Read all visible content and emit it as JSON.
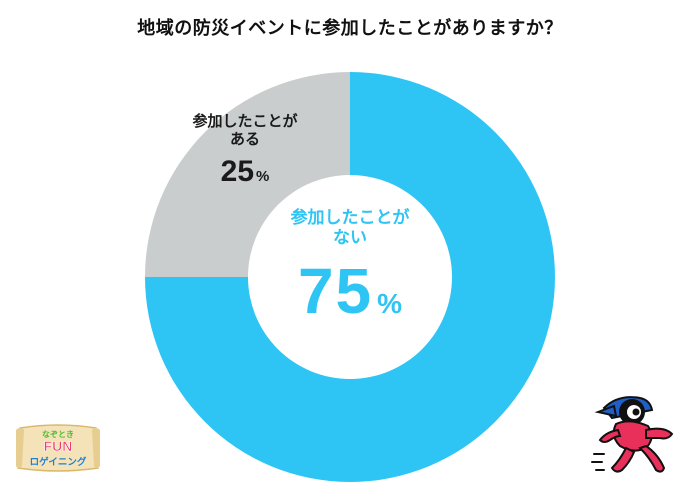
{
  "title": "地域の防災イベントに参加したことがありますか？",
  "chart_data": {
    "type": "pie",
    "style": "donut",
    "slices": [
      {
        "label_line1": "参加したことが",
        "label_line2": "ない",
        "value": 75,
        "unit": "%",
        "color": "#2ec5f5"
      },
      {
        "label_line1": "参加したことが",
        "label_line2": "ある",
        "value": 25,
        "unit": "%",
        "color": "#c9cdcd"
      }
    ]
  },
  "logo": {
    "line1": "なぞとき",
    "line2": "FUN",
    "line3": "ロゲイニング",
    "colors": {
      "frame": "#f4e3b8",
      "accent": "#ec3b6d",
      "green": "#53b934"
    }
  },
  "mascot": {
    "icon": "running-mascot-icon",
    "colors": {
      "body": "#e8305a",
      "cap": "#1f5fc7",
      "outline": "#111111"
    }
  }
}
